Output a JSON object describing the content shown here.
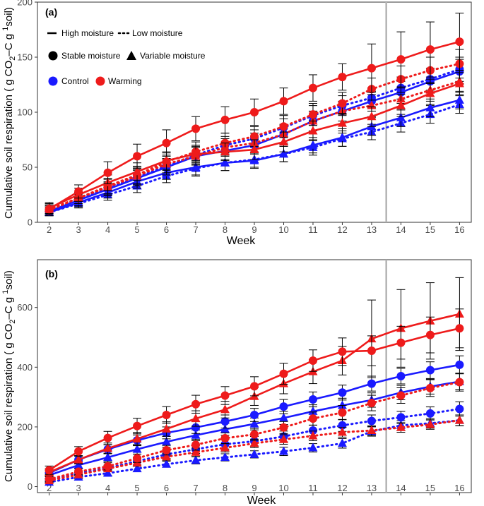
{
  "colors": {
    "control": "#1a1aff",
    "warming": "#ee1b1b",
    "errorbar": "#000000",
    "panel_border": "#333333",
    "week_line": "#b3b3b3"
  },
  "legend": {
    "moisture_level": [
      "High moisture",
      "Low moisture"
    ],
    "moisture_pattern": [
      "Stable moisture",
      "Variable moisture"
    ],
    "temperature": [
      "Control",
      "Warming"
    ]
  },
  "chart_data": [
    {
      "type": "line",
      "panel_label": "(a)",
      "xlabel": "Week",
      "ylabel": "Cumulative soil respiration (  g CO2–C g  1soil)",
      "ylabel_prefix": "Cumulative soil respiration (  g CO",
      "ylabel_sub": "2",
      "ylabel_mid": "–C g  ",
      "ylabel_sup": "1",
      "ylabel_suffix": "soil)",
      "x": [
        2,
        3,
        4,
        5,
        6,
        7,
        8,
        9,
        10,
        11,
        12,
        13,
        14,
        15,
        16
      ],
      "xlim": [
        1.6,
        16.4
      ],
      "ylim": [
        0,
        200
      ],
      "yticks": [
        0,
        50,
        100,
        150,
        200
      ],
      "vline_week": 13.5,
      "series": [
        {
          "name": "Warming, High moisture, Stable moisture",
          "treatment": "Warming",
          "moisture": "High",
          "pattern": "Stable",
          "values": [
            12,
            28,
            45,
            60,
            72,
            85,
            93,
            100,
            110,
            122,
            132,
            140,
            148,
            157,
            164
          ],
          "err": [
            5,
            6,
            10,
            11,
            12,
            11,
            12,
            12,
            12,
            12,
            12,
            22,
            25,
            25,
            26
          ]
        },
        {
          "name": "Warming, Low moisture, Stable moisture",
          "treatment": "Warming",
          "moisture": "Low",
          "pattern": "Stable",
          "values": [
            11,
            22,
            33,
            43,
            55,
            64,
            72,
            78,
            87,
            98,
            108,
            121,
            130,
            138,
            144
          ],
          "err": [
            4,
            5,
            7,
            8,
            8,
            9,
            9,
            9,
            10,
            10,
            10,
            10,
            12,
            12,
            13
          ]
        },
        {
          "name": "Warming, High moisture, Variable moisture",
          "treatment": "Warming",
          "moisture": "High",
          "pattern": "Variable",
          "values": [
            13,
            25,
            36,
            46,
            56,
            62,
            64,
            66,
            73,
            83,
            90,
            96,
            106,
            117,
            126
          ],
          "err": [
            5,
            6,
            7,
            8,
            8,
            8,
            8,
            9,
            9,
            9,
            9,
            9,
            10,
            10,
            10
          ]
        },
        {
          "name": "Warming, Low moisture, Variable moisture",
          "treatment": "Warming",
          "moisture": "Low",
          "pattern": "Variable",
          "values": [
            12,
            22,
            32,
            42,
            53,
            60,
            68,
            72,
            80,
            92,
            101,
            106,
            112,
            120,
            128
          ],
          "err": [
            4,
            5,
            7,
            8,
            8,
            8,
            8,
            9,
            9,
            9,
            9,
            10,
            10,
            10,
            10
          ]
        },
        {
          "name": "Control, High moisture, Stable moisture",
          "treatment": "Control",
          "moisture": "High",
          "pattern": "Stable",
          "values": [
            10,
            20,
            30,
            40,
            50,
            60,
            65,
            70,
            80,
            92,
            101,
            110,
            118,
            128,
            137
          ],
          "err": [
            4,
            5,
            6,
            7,
            7,
            8,
            8,
            8,
            8,
            9,
            9,
            9,
            10,
            10,
            11
          ]
        },
        {
          "name": "Control, Low moisture, Stable moisture",
          "treatment": "Control",
          "moisture": "Low",
          "pattern": "Stable",
          "values": [
            10,
            21,
            31,
            41,
            51,
            61,
            70,
            76,
            86,
            97,
            106,
            113,
            122,
            130,
            139
          ],
          "err": [
            4,
            5,
            6,
            7,
            7,
            8,
            8,
            8,
            8,
            9,
            9,
            9,
            10,
            10,
            11
          ]
        },
        {
          "name": "Control, High moisture, Variable moisture",
          "treatment": "Control",
          "moisture": "High",
          "pattern": "Variable",
          "values": [
            9,
            18,
            27,
            37,
            45,
            50,
            54,
            56,
            62,
            70,
            77,
            87,
            95,
            104,
            111
          ],
          "err": [
            3,
            4,
            5,
            6,
            6,
            7,
            7,
            7,
            7,
            7,
            8,
            8,
            8,
            8,
            8
          ]
        },
        {
          "name": "Control, Low moisture, Variable moisture",
          "treatment": "Control",
          "moisture": "Low",
          "pattern": "Variable",
          "values": [
            9,
            17,
            25,
            33,
            42,
            49,
            54,
            57,
            62,
            68,
            76,
            82,
            90,
            98,
            107
          ],
          "err": [
            3,
            4,
            5,
            6,
            6,
            7,
            7,
            7,
            7,
            7,
            7,
            7,
            8,
            8,
            8
          ]
        }
      ]
    },
    {
      "type": "line",
      "panel_label": "(b)",
      "xlabel": "Week",
      "ylabel": "Cumulative soil respiration (  g CO2–C g  1soil)",
      "ylabel_prefix": "Cumulative soil respiration (  g CO",
      "ylabel_sub": "2",
      "ylabel_mid": "–C g  ",
      "ylabel_sup": "1",
      "ylabel_suffix": "soil)",
      "x": [
        2,
        3,
        4,
        5,
        6,
        7,
        8,
        9,
        10,
        11,
        12,
        13,
        14,
        15,
        16
      ],
      "xlim": [
        1.6,
        16.4
      ],
      "ylim": [
        -20,
        760
      ],
      "yticks": [
        0,
        200,
        400,
        600
      ],
      "vline_week": 13.5,
      "series": [
        {
          "name": "Warming, High moisture, Stable moisture",
          "treatment": "Warming",
          "moisture": "High",
          "pattern": "Stable",
          "values": [
            55,
            118,
            163,
            203,
            240,
            276,
            305,
            336,
            378,
            422,
            452,
            455,
            482,
            508,
            530
          ],
          "err": [
            14,
            16,
            22,
            26,
            28,
            30,
            30,
            32,
            35,
            36,
            46,
            50,
            55,
            60,
            65
          ]
        },
        {
          "name": "Warming, High moisture, Variable moisture",
          "treatment": "Warming",
          "moisture": "High",
          "pattern": "Variable",
          "values": [
            48,
            90,
            128,
            160,
            193,
            228,
            258,
            302,
            345,
            385,
            422,
            495,
            530,
            555,
            578
          ],
          "err": [
            12,
            14,
            18,
            22,
            24,
            26,
            28,
            30,
            34,
            40,
            48,
            130,
            130,
            128,
            122
          ]
        },
        {
          "name": "Control, High moisture, Stable moisture",
          "treatment": "Control",
          "moisture": "High",
          "pattern": "Stable",
          "values": [
            45,
            90,
            125,
            155,
            180,
            198,
            218,
            240,
            268,
            292,
            315,
            345,
            370,
            390,
            408
          ],
          "err": [
            10,
            12,
            15,
            18,
            20,
            20,
            22,
            22,
            24,
            25,
            25,
            25,
            26,
            28,
            30
          ]
        },
        {
          "name": "Control, High moisture, Variable moisture",
          "treatment": "Control",
          "moisture": "High",
          "pattern": "Variable",
          "values": [
            38,
            72,
            98,
            125,
            150,
            172,
            192,
            210,
            230,
            252,
            272,
            290,
            315,
            335,
            352
          ],
          "err": [
            10,
            12,
            14,
            16,
            18,
            18,
            20,
            20,
            22,
            22,
            24,
            24,
            24,
            25,
            26
          ]
        },
        {
          "name": "Warming, Low moisture, Stable moisture",
          "treatment": "Warming",
          "moisture": "Low",
          "pattern": "Stable",
          "values": [
            25,
            50,
            68,
            95,
            122,
            140,
            162,
            175,
            198,
            228,
            248,
            280,
            305,
            330,
            350
          ],
          "err": [
            8,
            10,
            12,
            14,
            16,
            18,
            18,
            20,
            20,
            22,
            24,
            26,
            26,
            28,
            30
          ]
        },
        {
          "name": "Warming, Low moisture, Variable moisture",
          "treatment": "Warming",
          "moisture": "Low",
          "pattern": "Variable",
          "values": [
            20,
            40,
            60,
            80,
            100,
            115,
            130,
            145,
            158,
            170,
            182,
            188,
            198,
            208,
            222
          ],
          "err": [
            6,
            8,
            10,
            12,
            12,
            14,
            14,
            14,
            16,
            16,
            16,
            16,
            16,
            16,
            18
          ]
        },
        {
          "name": "Control, Low moisture, Stable moisture",
          "treatment": "Control",
          "moisture": "Low",
          "pattern": "Stable",
          "values": [
            22,
            45,
            62,
            85,
            108,
            125,
            142,
            152,
            168,
            188,
            205,
            220,
            232,
            245,
            260
          ],
          "err": [
            6,
            8,
            10,
            12,
            14,
            14,
            16,
            16,
            18,
            18,
            20,
            20,
            20,
            22,
            24
          ]
        },
        {
          "name": "Control, Low moisture, Variable moisture",
          "treatment": "Control",
          "moisture": "Low",
          "pattern": "Variable",
          "values": [
            15,
            32,
            45,
            60,
            75,
            88,
            98,
            108,
            118,
            130,
            145,
            185,
            205,
            212,
            222
          ],
          "err": [
            5,
            6,
            8,
            10,
            10,
            12,
            12,
            12,
            14,
            14,
            16,
            16,
            16,
            16,
            18
          ]
        }
      ]
    }
  ]
}
